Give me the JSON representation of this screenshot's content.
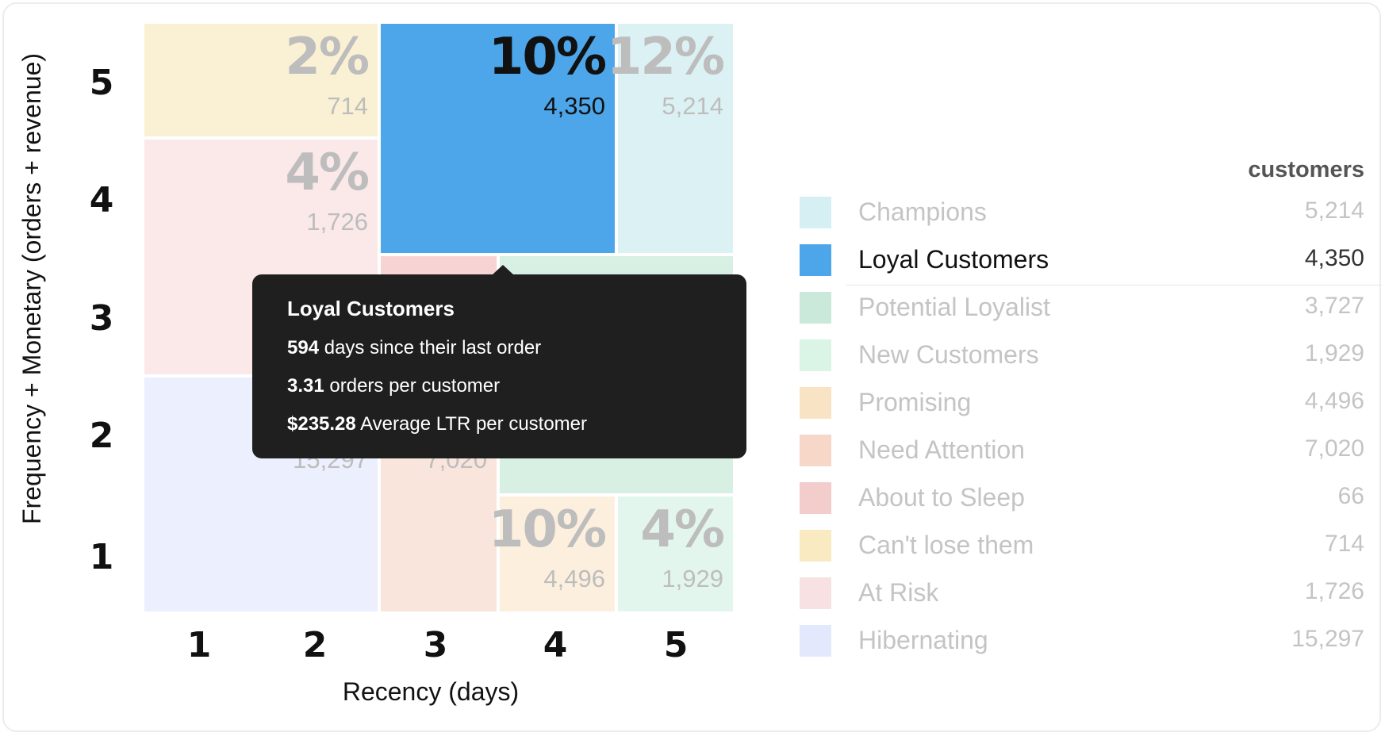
{
  "chart_data": {
    "type": "treemap",
    "xlabel": "Recency (days)",
    "ylabel": "Frequency + Monetary (orders + revenue)",
    "x_ticks": [
      "1",
      "2",
      "3",
      "4",
      "5"
    ],
    "y_ticks": [
      "5",
      "4",
      "3",
      "2",
      "1"
    ],
    "segments": [
      {
        "name": "Can't lose them",
        "pct": "2%",
        "count": "714",
        "color": "#faf0d4",
        "x": [
          1,
          3
        ],
        "y": [
          5,
          5
        ]
      },
      {
        "name": "Loyal Customers",
        "pct": "10%",
        "count": "4,350",
        "color": "#4da6ea",
        "x": [
          3,
          5
        ],
        "y": [
          4,
          5
        ],
        "highlight": true
      },
      {
        "name": "Champions",
        "pct": "12%",
        "count": "5,214",
        "color": "#dbf1f3",
        "x": [
          5,
          6
        ],
        "y": [
          4,
          5
        ]
      },
      {
        "name": "At Risk",
        "pct": "4%",
        "count": "1,726",
        "color": "#fbe8e8",
        "x": [
          1,
          3
        ],
        "y": [
          3,
          4
        ]
      },
      {
        "name": "About to Sleep",
        "pct": "",
        "count": "",
        "color": "#f7d3d3",
        "x": [
          3,
          4
        ],
        "y": [
          3,
          3
        ]
      },
      {
        "name": "Potential Loyalist",
        "pct": "",
        "count": "",
        "color": "#d8efe3",
        "x": [
          4,
          6
        ],
        "y": [
          2,
          3
        ]
      },
      {
        "name": "Hibernating",
        "pct": "",
        "count": "15,297",
        "color": "#eceffd",
        "x": [
          1,
          3
        ],
        "y": [
          1,
          2
        ]
      },
      {
        "name": "Need Attention",
        "pct": "",
        "count": "7,020",
        "color": "#f9e5dc",
        "x": [
          3,
          4
        ],
        "y": [
          1,
          2
        ]
      },
      {
        "name": "Promising",
        "pct": "10%",
        "count": "4,496",
        "color": "#fcefdd",
        "x": [
          4,
          5
        ],
        "y": [
          1,
          1
        ]
      },
      {
        "name": "New Customers",
        "pct": "4%",
        "count": "1,929",
        "color": "#e3f6ee",
        "x": [
          5,
          6
        ],
        "y": [
          1,
          1
        ]
      }
    ]
  },
  "tooltip": {
    "title": "Loyal Customers",
    "lines": [
      {
        "value": "594",
        "text": " days since their last order"
      },
      {
        "value": "3.31",
        "text": " orders per customer"
      },
      {
        "value": "$235.28",
        "text": " Average LTR per customer"
      }
    ]
  },
  "legend": {
    "header": "customers",
    "items": [
      {
        "name": "Champions",
        "count": "5,214",
        "color": "#d5eff2"
      },
      {
        "name": "Loyal Customers",
        "count": "4,350",
        "color": "#4da6ea",
        "highlight": true
      },
      {
        "name": "Potential Loyalist",
        "count": "3,727",
        "color": "#cbe9da"
      },
      {
        "name": "New Customers",
        "count": "1,929",
        "color": "#daf4e6"
      },
      {
        "name": "Promising",
        "count": "4,496",
        "color": "#f9e3c5"
      },
      {
        "name": "Need Attention",
        "count": "7,020",
        "color": "#f7d7c7"
      },
      {
        "name": "About to Sleep",
        "count": "66",
        "color": "#f3cccc"
      },
      {
        "name": "Can't lose them",
        "count": "714",
        "color": "#faeac1"
      },
      {
        "name": "At Risk",
        "count": "1,726",
        "color": "#f8e1e3"
      },
      {
        "name": "Hibernating",
        "count": "15,297",
        "color": "#e3e8fc"
      }
    ]
  }
}
